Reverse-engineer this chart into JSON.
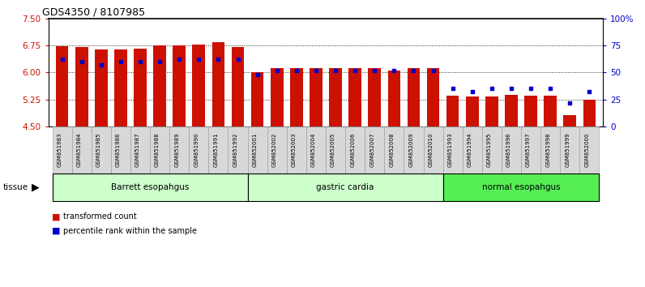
{
  "title": "GDS4350 / 8107985",
  "samples": [
    "GSM851983",
    "GSM851984",
    "GSM851985",
    "GSM851986",
    "GSM851987",
    "GSM851988",
    "GSM851989",
    "GSM851990",
    "GSM851991",
    "GSM851992",
    "GSM852001",
    "GSM852002",
    "GSM852003",
    "GSM852004",
    "GSM852005",
    "GSM852006",
    "GSM852007",
    "GSM852008",
    "GSM852009",
    "GSM852010",
    "GSM851993",
    "GSM851994",
    "GSM851995",
    "GSM851996",
    "GSM851997",
    "GSM851998",
    "GSM851999",
    "GSM852000"
  ],
  "red_values": [
    6.74,
    6.71,
    6.64,
    6.64,
    6.67,
    6.75,
    6.75,
    6.78,
    6.85,
    6.71,
    6.0,
    6.12,
    6.12,
    6.12,
    6.12,
    6.12,
    6.12,
    6.06,
    6.12,
    6.12,
    5.36,
    5.32,
    5.32,
    5.37,
    5.36,
    5.36,
    4.82,
    5.25
  ],
  "blue_pct": [
    62,
    60,
    57,
    60,
    60,
    60,
    62,
    62,
    62,
    62,
    48,
    52,
    52,
    52,
    52,
    52,
    52,
    52,
    52,
    52,
    35,
    32,
    35,
    35,
    35,
    35,
    22,
    32
  ],
  "group_labels": [
    "Barrett esopahgus",
    "gastric cardia",
    "normal esopahgus"
  ],
  "group_ranges": [
    [
      0,
      9
    ],
    [
      10,
      19
    ],
    [
      20,
      27
    ]
  ],
  "group_light_color": "#ccffcc",
  "group_bright_color": "#55ee55",
  "group_colors": [
    "#ccffcc",
    "#ccffcc",
    "#55ee55"
  ],
  "ylim_left": [
    4.5,
    7.5
  ],
  "ylim_right": [
    0,
    100
  ],
  "yticks_left": [
    4.5,
    5.25,
    6.0,
    6.75,
    7.5
  ],
  "yticks_right": [
    0,
    25,
    50,
    75,
    100
  ],
  "ytick_right_labels": [
    "0",
    "25",
    "50",
    "75",
    "100%"
  ],
  "grid_lines": [
    5.25,
    6.0,
    6.75
  ],
  "bar_color": "#cc1100",
  "dot_color": "#0000cc",
  "bar_width": 0.65,
  "xtick_bg": "#d8d8d8",
  "xtick_border": "#888888"
}
